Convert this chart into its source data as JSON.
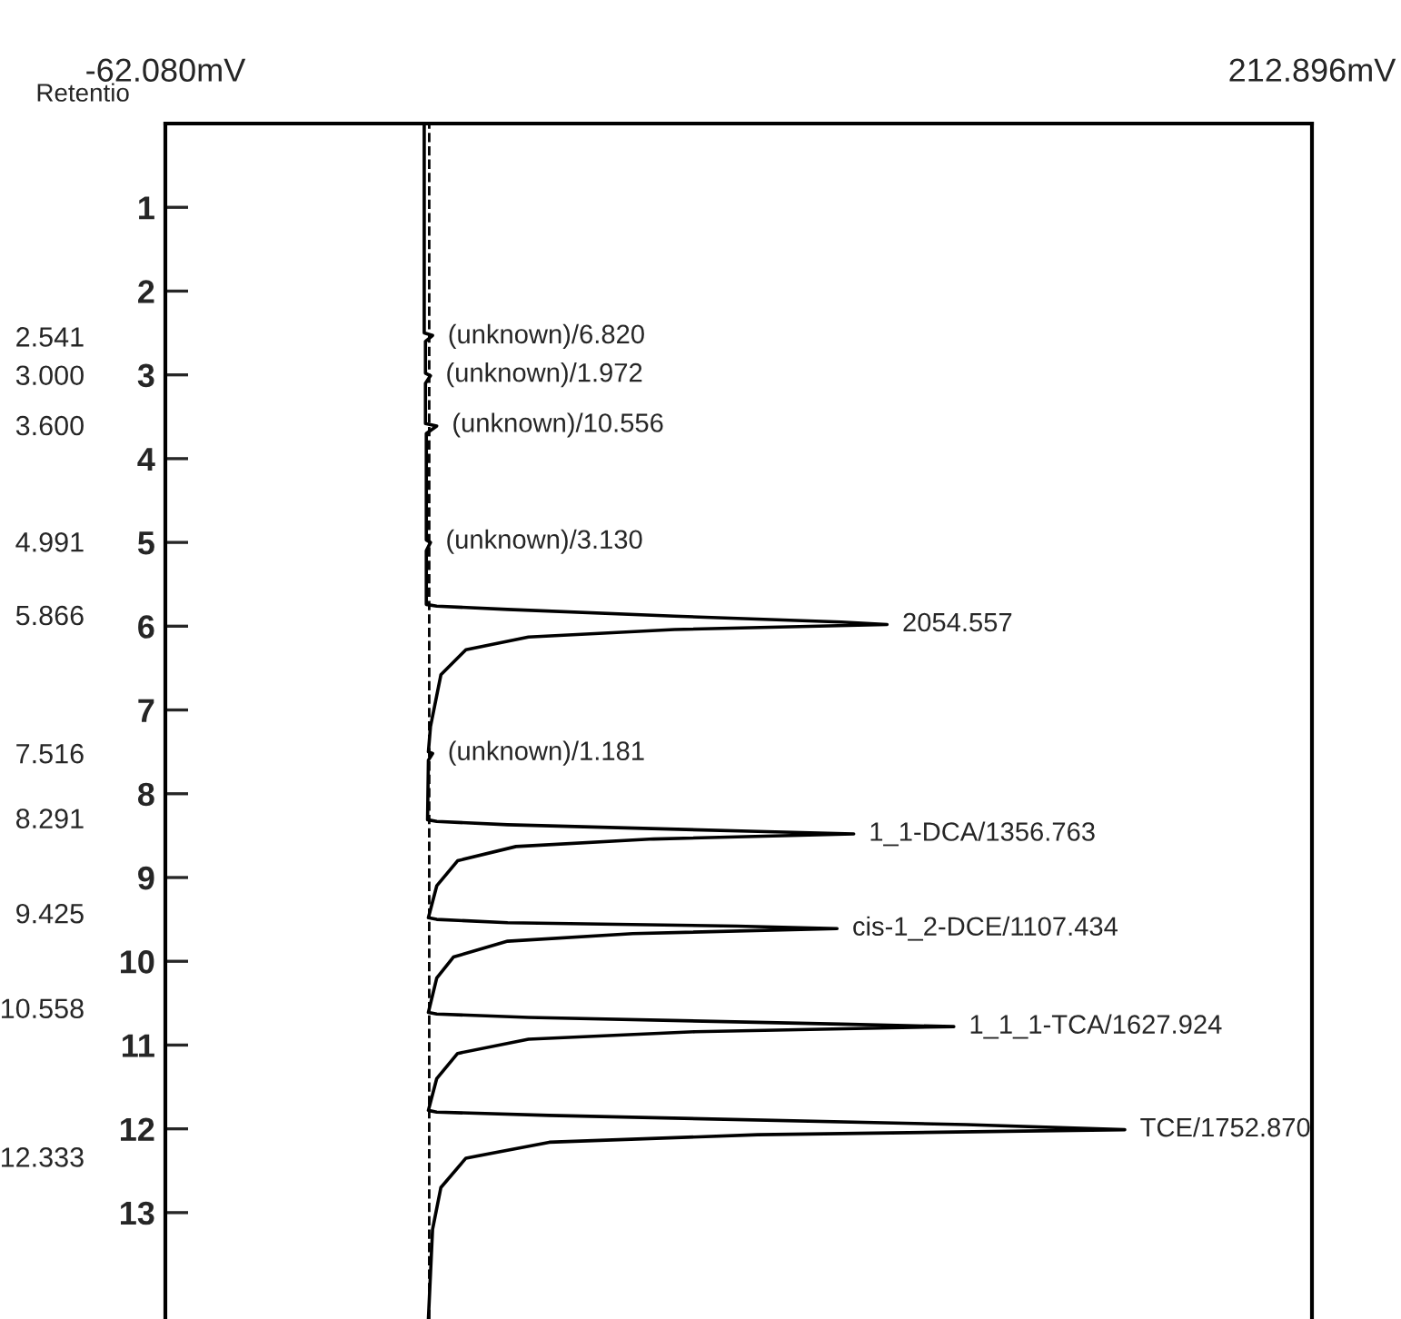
{
  "chart_data": {
    "type": "line",
    "orientation": "horizontal",
    "xlim": [
      -62.08,
      212.896
    ],
    "xticks": [
      {
        "value": -62.08,
        "label": "-62.080mV"
      },
      {
        "value": 212.896,
        "label": "212.896mV"
      }
    ],
    "ylim": [
      14.27,
      0
    ],
    "yticks": [
      1,
      2,
      3,
      4,
      5,
      6,
      7,
      8,
      9,
      10,
      11,
      12,
      13
    ],
    "y2lim": [
      14.27,
      0
    ],
    "y2ticks": [
      {
        "value": 2.541,
        "label": "2.541"
      },
      {
        "value": 3.0,
        "label": "3.000"
      },
      {
        "value": 3.6,
        "label": "3.600"
      },
      {
        "value": 4.991,
        "label": "4.991"
      },
      {
        "value": 5.866,
        "label": "5.866"
      },
      {
        "value": 7.516,
        "label": "7.516"
      },
      {
        "value": 8.291,
        "label": "8.291"
      },
      {
        "value": 9.425,
        "label": "9.425"
      },
      {
        "value": 10.558,
        "label": "10.558"
      },
      {
        "value": 12.333,
        "label": "12.333"
      }
    ],
    "grid": false,
    "marker": "none",
    "line_style": "solid",
    "series": [
      {
        "color": "#000000",
        "x": [
          0.0,
          2.5,
          2.53,
          2.6,
          2.98,
          3.01,
          3.1,
          3.58,
          3.61,
          3.7,
          4.97,
          5.0,
          5.1,
          5.74,
          5.76,
          5.8,
          5.88,
          5.95,
          5.98,
          6.04,
          6.13,
          6.28,
          6.58,
          7.2,
          7.5,
          7.52,
          7.6,
          8.31,
          8.33,
          8.37,
          8.45,
          8.48,
          8.54,
          8.63,
          8.8,
          9.1,
          9.48,
          9.5,
          9.54,
          9.58,
          9.61,
          9.67,
          9.76,
          9.95,
          10.2,
          10.61,
          10.63,
          10.67,
          10.75,
          10.78,
          10.84,
          10.93,
          11.1,
          11.4,
          11.78,
          11.8,
          11.84,
          11.95,
          12.01,
          12.07,
          12.16,
          12.35,
          12.7,
          13.2,
          14.27
        ],
        "values": [
          0.0,
          0.0,
          2.0,
          0.3,
          0.3,
          1.5,
          0.3,
          0.3,
          3.0,
          0.5,
          0.5,
          1.5,
          0.5,
          0.5,
          3.0,
          20.0,
          60.0,
          100.0,
          111.0,
          60.0,
          25.0,
          10.0,
          4.0,
          1.5,
          1.0,
          2.0,
          1.0,
          0.8,
          3.0,
          20.0,
          80.0,
          103.0,
          55.0,
          22.0,
          8.0,
          3.0,
          1.0,
          3.0,
          20.0,
          75.0,
          99.0,
          50.0,
          20.0,
          7.0,
          3.0,
          1.0,
          3.0,
          25.0,
          100.0,
          127.0,
          65.0,
          25.0,
          8.0,
          3.0,
          1.0,
          3.0,
          30.0,
          130.0,
          168.0,
          80.0,
          30.0,
          10.0,
          4.0,
          2.0,
          1.0
        ]
      }
    ],
    "ref_lines": [
      {
        "axis": "x",
        "value": 1.2,
        "line_style": "dashed",
        "color": "#000000"
      }
    ],
    "annotations": [
      "Retentio",
      {
        "text": "(unknown)/6.820",
        "x": 2.0,
        "y": 2.541
      },
      {
        "text": "(unknown)/1.972",
        "x": 1.5,
        "y": 3.0
      },
      {
        "text": "(unknown)/10.556",
        "x": 3.0,
        "y": 3.6
      },
      {
        "text": "(unknown)/3.130",
        "x": 1.5,
        "y": 4.991
      },
      {
        "text": "2054.557",
        "x": 111.0,
        "y": 5.98
      },
      {
        "text": "(unknown)/1.181",
        "x": 2.0,
        "y": 7.516
      },
      {
        "text": "1_1-DCA/1356.763",
        "x": 103.0,
        "y": 8.48
      },
      {
        "text": "cis-1_2-DCE/1107.434",
        "x": 99.0,
        "y": 9.61
      },
      {
        "text": "1_1_1-TCA/1627.924",
        "x": 127.0,
        "y": 10.78
      },
      {
        "text": "TCE/1752.870",
        "x": 168.0,
        "y": 12.01
      }
    ]
  }
}
